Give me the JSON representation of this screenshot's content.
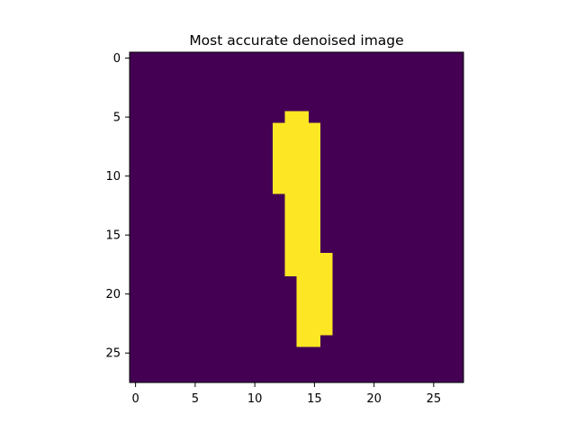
{
  "chart_data": {
    "type": "heatmap",
    "title": "Most accurate denoised image",
    "xlabel": "",
    "ylabel": "",
    "rows": 28,
    "cols": 28,
    "xlim": [
      -0.5,
      27.5
    ],
    "ylim": [
      27.5,
      -0.5
    ],
    "xticks": [
      0,
      5,
      10,
      15,
      20,
      25
    ],
    "yticks": [
      0,
      5,
      10,
      15,
      20,
      25
    ],
    "colormap": "viridis",
    "colors": {
      "low": "#440154",
      "high": "#fde725"
    },
    "grid": false,
    "binary_matrix_row_runs": [
      {
        "row": 5,
        "start": 13,
        "end": 14
      },
      {
        "row": 6,
        "start": 12,
        "end": 15
      },
      {
        "row": 7,
        "start": 12,
        "end": 15
      },
      {
        "row": 8,
        "start": 12,
        "end": 15
      },
      {
        "row": 9,
        "start": 12,
        "end": 15
      },
      {
        "row": 10,
        "start": 12,
        "end": 15
      },
      {
        "row": 11,
        "start": 12,
        "end": 15
      },
      {
        "row": 12,
        "start": 13,
        "end": 15
      },
      {
        "row": 13,
        "start": 13,
        "end": 15
      },
      {
        "row": 14,
        "start": 13,
        "end": 15
      },
      {
        "row": 15,
        "start": 13,
        "end": 15
      },
      {
        "row": 16,
        "start": 13,
        "end": 15
      },
      {
        "row": 17,
        "start": 13,
        "end": 16
      },
      {
        "row": 18,
        "start": 13,
        "end": 16
      },
      {
        "row": 19,
        "start": 14,
        "end": 16
      },
      {
        "row": 20,
        "start": 14,
        "end": 16
      },
      {
        "row": 21,
        "start": 14,
        "end": 16
      },
      {
        "row": 22,
        "start": 14,
        "end": 16
      },
      {
        "row": 23,
        "start": 14,
        "end": 16
      },
      {
        "row": 24,
        "start": 14,
        "end": 15
      }
    ]
  }
}
